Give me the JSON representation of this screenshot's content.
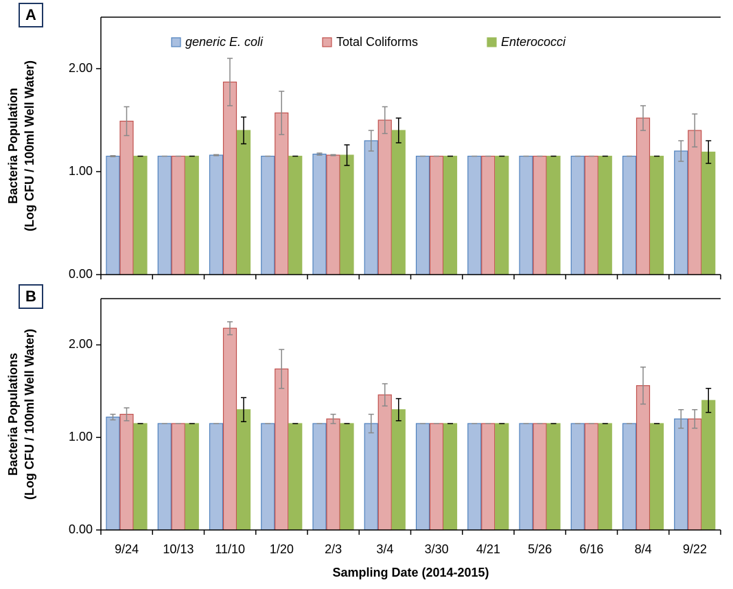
{
  "chart_data": [
    {
      "type": "bar",
      "panel_label": "A",
      "ylabel": [
        "Bacteria Population",
        "(Log CFU / 100ml Well Water)"
      ],
      "ylim": [
        0,
        2.5
      ],
      "yticks": [
        {
          "value": 0,
          "label": "0.00"
        },
        {
          "value": 1,
          "label": "1.00"
        },
        {
          "value": 2,
          "label": "2.00"
        }
      ],
      "series": [
        {
          "name": "generic E. coli",
          "italic": true,
          "color": "#a9bfe0",
          "edge": "#4f81bd",
          "error_color": "#888888",
          "values": [
            1.15,
            1.15,
            1.16,
            1.15,
            1.17,
            1.3,
            1.15,
            1.15,
            1.15,
            1.15,
            1.15,
            1.2
          ],
          "errors": [
            0.005,
            0,
            0.005,
            0,
            0.01,
            0.1,
            0,
            0,
            0,
            0,
            0,
            0.1
          ]
        },
        {
          "name": "Total Coliforms",
          "italic": false,
          "color": "#e5a9a8",
          "edge": "#c0504d",
          "error_color": "#888888",
          "values": [
            1.49,
            1.15,
            1.87,
            1.57,
            1.16,
            1.5,
            1.15,
            1.15,
            1.15,
            1.15,
            1.52,
            1.4
          ],
          "errors": [
            0.14,
            0,
            0.23,
            0.21,
            0.005,
            0.13,
            0,
            0,
            0,
            0,
            0.12,
            0.16
          ]
        },
        {
          "name": "Enterococci",
          "italic": true,
          "color": "#9bbb59",
          "edge": "#9bbb59",
          "error_color": "#000000",
          "values": [
            1.15,
            1.15,
            1.4,
            1.15,
            1.16,
            1.4,
            1.15,
            1.15,
            1.15,
            1.15,
            1.15,
            1.19
          ],
          "errors": [
            0,
            0,
            0.13,
            0,
            0.1,
            0.12,
            0,
            0,
            0,
            0,
            0,
            0.11
          ]
        }
      ]
    },
    {
      "type": "bar",
      "panel_label": "B",
      "ylabel": [
        "Bacteria Populations",
        "(Log CFU / 100ml Well Water)"
      ],
      "xlabel": "Sampling Date (2014-2015)",
      "categories": [
        "9/24",
        "10/13",
        "11/10",
        "1/20",
        "2/3",
        "3/4",
        "3/30",
        "4/21",
        "5/26",
        "6/16",
        "8/4",
        "9/22"
      ],
      "ylim": [
        0,
        2.5
      ],
      "yticks": [
        {
          "value": 0,
          "label": "0.00"
        },
        {
          "value": 1,
          "label": "1.00"
        },
        {
          "value": 2,
          "label": "2.00"
        }
      ],
      "series": [
        {
          "color": "#a9bfe0",
          "edge": "#4f81bd",
          "error_color": "#888888",
          "values": [
            1.22,
            1.15,
            1.15,
            1.15,
            1.15,
            1.15,
            1.15,
            1.15,
            1.15,
            1.15,
            1.15,
            1.2
          ],
          "errors": [
            0.03,
            0,
            0,
            0,
            0,
            0.1,
            0,
            0,
            0,
            0,
            0,
            0.1
          ]
        },
        {
          "color": "#e5a9a8",
          "edge": "#c0504d",
          "error_color": "#888888",
          "values": [
            1.25,
            1.15,
            2.18,
            1.74,
            1.2,
            1.46,
            1.15,
            1.15,
            1.15,
            1.15,
            1.56,
            1.2
          ],
          "errors": [
            0.07,
            0,
            0.07,
            0.21,
            0.05,
            0.12,
            0,
            0,
            0,
            0,
            0.2,
            0.1
          ]
        },
        {
          "color": "#9bbb59",
          "edge": "#9bbb59",
          "error_color": "#000000",
          "values": [
            1.15,
            1.15,
            1.3,
            1.15,
            1.15,
            1.3,
            1.15,
            1.15,
            1.15,
            1.15,
            1.15,
            1.4
          ],
          "errors": [
            0,
            0,
            0.13,
            0,
            0,
            0.12,
            0,
            0,
            0,
            0,
            0,
            0.13
          ]
        }
      ]
    }
  ]
}
